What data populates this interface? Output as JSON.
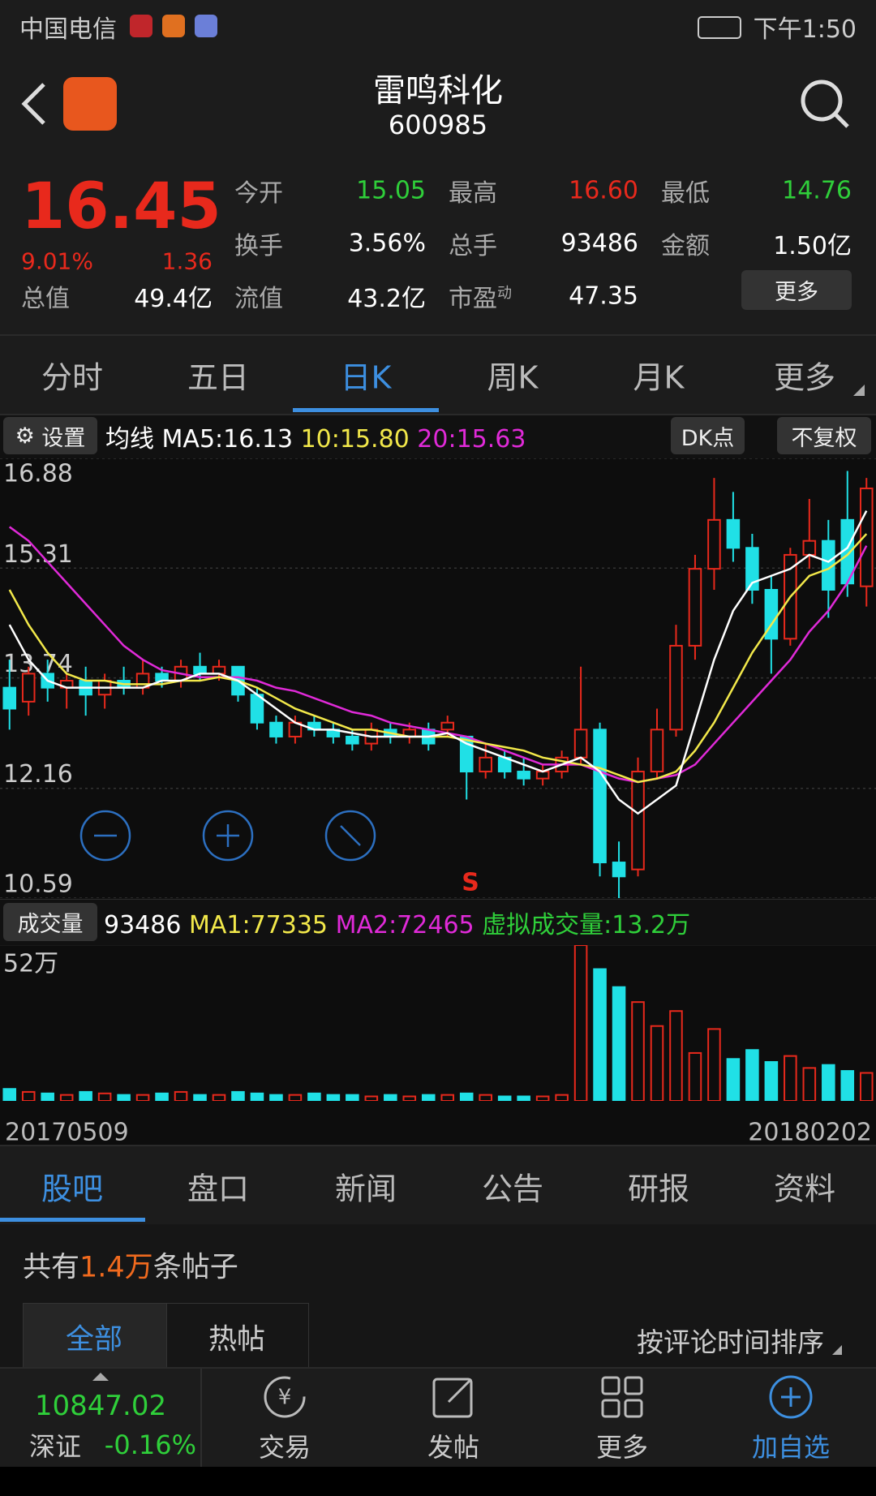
{
  "status_bar": {
    "carrier": "中国电信",
    "time": "下午1:50"
  },
  "header": {
    "title": "雷鸣科化",
    "code": "600985"
  },
  "quote": {
    "price": "16.45",
    "change_pct": "9.01%",
    "change": "1.36",
    "total_value_label": "总值",
    "total_value": "49.4亿",
    "fields": [
      {
        "label": "今开",
        "value": "15.05"
      },
      {
        "label": "最高",
        "value": "16.60"
      },
      {
        "label": "最低",
        "value": "14.76"
      },
      {
        "label": "换手",
        "value": "3.56%"
      },
      {
        "label": "总手",
        "value": "93486"
      },
      {
        "label": "金额",
        "value": "1.50亿"
      },
      {
        "label": "流值",
        "value": "43.2亿"
      },
      {
        "label": "市盈",
        "sup": "动",
        "value": "47.35"
      }
    ],
    "more": "更多"
  },
  "period_tabs": {
    "items": [
      "分时",
      "五日",
      "日K",
      "周K",
      "月K",
      "更多"
    ],
    "active": 2
  },
  "indicator": {
    "settings": "设置",
    "label": "均线",
    "ma5": "MA5:16.13",
    "ma10": "10:15.80",
    "ma20": "20:15.63",
    "dk": "DK点",
    "adjust": "不复权"
  },
  "kline": {
    "ylim": [
      10.59,
      16.88
    ],
    "yticks": [
      16.88,
      15.31,
      13.74,
      12.16,
      10.59
    ],
    "grid": true,
    "up_color": "#e8291c",
    "down_color": "#20e0e6",
    "ma5_color": "#ffffff",
    "ma10_color": "#f2e84a",
    "ma20_color": "#e02ad8",
    "open": [
      13.6,
      13.4,
      13.8,
      13.6,
      13.7,
      13.5,
      13.7,
      13.6,
      13.8,
      13.7,
      13.9,
      13.8,
      13.9,
      13.5,
      13.1,
      12.9,
      13.1,
      13.0,
      12.9,
      12.8,
      13.0,
      12.9,
      13.0,
      13.0,
      12.9,
      12.4,
      12.6,
      12.4,
      12.3,
      12.4,
      12.6,
      13.0,
      11.1,
      11.0,
      12.4,
      13.0,
      14.2,
      15.3,
      16.0,
      15.6,
      15.0,
      14.3,
      15.5,
      15.7,
      16.0,
      15.05
    ],
    "close": [
      13.3,
      13.8,
      13.6,
      13.7,
      13.5,
      13.7,
      13.6,
      13.8,
      13.7,
      13.9,
      13.8,
      13.9,
      13.5,
      13.1,
      12.9,
      13.1,
      13.0,
      12.9,
      12.8,
      13.0,
      12.9,
      13.0,
      12.8,
      13.1,
      12.4,
      12.6,
      12.4,
      12.3,
      12.4,
      12.6,
      13.0,
      11.1,
      10.9,
      12.4,
      13.0,
      14.2,
      15.3,
      16.0,
      15.6,
      15.0,
      14.3,
      15.5,
      15.7,
      15.0,
      15.09,
      16.45
    ],
    "high": [
      14.0,
      13.9,
      14.0,
      13.8,
      13.9,
      13.8,
      13.9,
      14.0,
      13.9,
      14.0,
      14.1,
      14.0,
      13.9,
      13.6,
      13.2,
      13.2,
      13.2,
      13.1,
      13.0,
      13.1,
      13.1,
      13.1,
      13.1,
      13.2,
      12.9,
      12.8,
      12.7,
      12.6,
      12.5,
      12.7,
      13.9,
      13.1,
      11.4,
      12.6,
      13.3,
      14.5,
      15.5,
      16.6,
      16.4,
      15.8,
      15.2,
      15.6,
      16.3,
      16.0,
      16.7,
      16.6
    ],
    "low": [
      13.0,
      13.2,
      13.4,
      13.3,
      13.2,
      13.3,
      13.5,
      13.5,
      13.6,
      13.6,
      13.7,
      13.7,
      13.4,
      13.0,
      12.8,
      12.8,
      12.9,
      12.8,
      12.7,
      12.7,
      12.8,
      12.8,
      12.7,
      12.9,
      12.0,
      12.3,
      12.3,
      12.2,
      12.2,
      12.3,
      12.5,
      10.9,
      10.59,
      10.9,
      12.3,
      12.9,
      14.0,
      15.0,
      15.4,
      14.8,
      13.8,
      14.2,
      15.3,
      14.6,
      14.9,
      14.76
    ],
    "ma5": [
      14.5,
      14.0,
      13.7,
      13.6,
      13.6,
      13.6,
      13.6,
      13.6,
      13.7,
      13.7,
      13.8,
      13.8,
      13.7,
      13.5,
      13.3,
      13.1,
      13.0,
      13.0,
      12.95,
      12.9,
      12.9,
      12.9,
      12.9,
      12.95,
      12.8,
      12.7,
      12.6,
      12.5,
      12.4,
      12.5,
      12.6,
      12.4,
      12.0,
      11.8,
      12.0,
      12.2,
      13.1,
      14.0,
      14.7,
      15.1,
      15.2,
      15.3,
      15.5,
      15.4,
      15.6,
      16.13
    ],
    "ma10": [
      15.0,
      14.5,
      14.1,
      13.8,
      13.7,
      13.7,
      13.65,
      13.65,
      13.65,
      13.7,
      13.7,
      13.75,
      13.7,
      13.6,
      13.45,
      13.3,
      13.2,
      13.1,
      13.0,
      13.0,
      12.95,
      12.9,
      12.9,
      12.9,
      12.85,
      12.8,
      12.75,
      12.7,
      12.6,
      12.55,
      12.5,
      12.45,
      12.35,
      12.25,
      12.3,
      12.4,
      12.7,
      13.1,
      13.6,
      14.1,
      14.5,
      14.9,
      15.2,
      15.3,
      15.5,
      15.8
    ],
    "ma20": [
      15.9,
      15.7,
      15.4,
      15.1,
      14.8,
      14.5,
      14.2,
      14.0,
      13.85,
      13.8,
      13.75,
      13.75,
      13.75,
      13.7,
      13.6,
      13.55,
      13.45,
      13.35,
      13.25,
      13.2,
      13.1,
      13.05,
      13.0,
      12.95,
      12.9,
      12.8,
      12.7,
      12.6,
      12.5,
      12.5,
      12.5,
      12.4,
      12.3,
      12.25,
      12.3,
      12.35,
      12.5,
      12.8,
      13.1,
      13.4,
      13.7,
      14.0,
      14.4,
      14.7,
      15.1,
      15.63
    ],
    "signal": "S"
  },
  "volume": {
    "label": "成交量",
    "current": "93486",
    "ma1": "MA1:77335",
    "ma2": "MA2:72465",
    "virtual": "虚拟成交量:13.2万",
    "ylim": [
      0,
      520000
    ],
    "yticks": [
      {
        "value": 520000,
        "label": "52万"
      }
    ],
    "values": [
      40000,
      30000,
      25000,
      20000,
      30000,
      25000,
      20000,
      20000,
      25000,
      30000,
      20000,
      20000,
      30000,
      25000,
      20000,
      20000,
      25000,
      20000,
      20000,
      15000,
      20000,
      15000,
      20000,
      20000,
      25000,
      20000,
      15000,
      15000,
      15000,
      20000,
      520000,
      440000,
      380000,
      330000,
      250000,
      300000,
      160000,
      240000,
      140000,
      170000,
      130000,
      150000,
      110000,
      120000,
      100000,
      93486
    ]
  },
  "dates": [
    "20170509",
    "20180202"
  ],
  "section_tabs": {
    "items": [
      "股吧",
      "盘口",
      "新闻",
      "公告",
      "研报",
      "资料"
    ],
    "active": 0
  },
  "posts": {
    "prefix": "共有",
    "count": "1.4万",
    "suffix": "条帖子",
    "filters": [
      "全部",
      "热帖"
    ],
    "sort": "按评论时间排序"
  },
  "bottom_bar": {
    "index_value": "10847.02",
    "index_name": "深证",
    "index_change": "-0.16%",
    "actions": [
      "交易",
      "发帖",
      "更多",
      "加自选"
    ]
  }
}
